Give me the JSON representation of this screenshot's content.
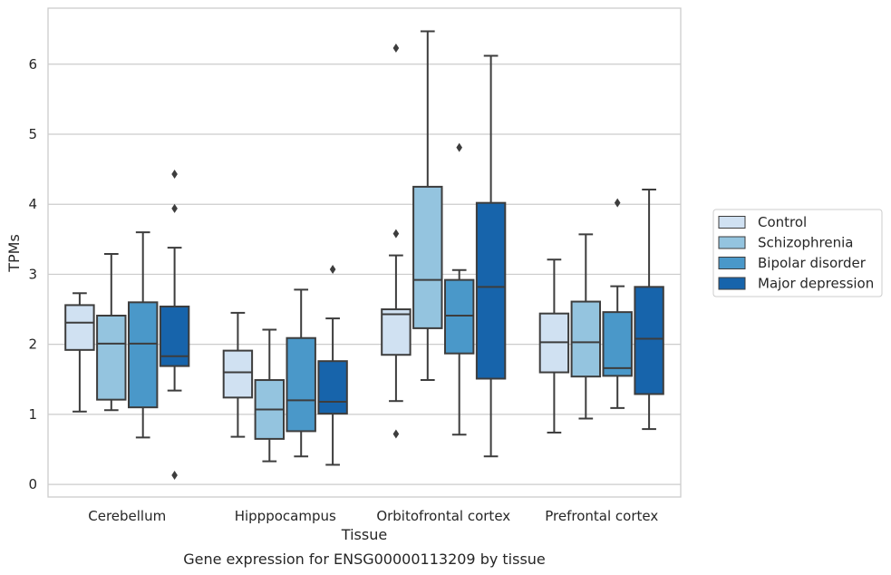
{
  "caption": "Gene expression for ENSG00000113209 by tissue",
  "chart_data": {
    "type": "boxplot",
    "xlabel": "Tissue",
    "ylabel": "TPMs",
    "ylim": [
      -0.18,
      6.8
    ],
    "yticks": [
      0,
      1,
      2,
      3,
      4,
      5,
      6
    ],
    "grid": "horizontal",
    "legend_position": "right",
    "categories": [
      "Cerebellum",
      "Hipppocampus",
      "Orbitofrontal cortex",
      "Prefrontal cortex"
    ],
    "series": [
      {
        "name": "Control",
        "color": "#d0e1f2",
        "boxes": [
          {
            "whislo": 1.04,
            "q1": 1.92,
            "med": 2.31,
            "q3": 2.56,
            "whishi": 2.73,
            "fliers": []
          },
          {
            "whislo": 0.68,
            "q1": 1.24,
            "med": 1.6,
            "q3": 1.91,
            "whishi": 2.45,
            "fliers": []
          },
          {
            "whislo": 1.19,
            "q1": 1.85,
            "med": 2.43,
            "q3": 2.5,
            "whishi": 3.27,
            "fliers": [
              6.23,
              3.58,
              0.72
            ]
          },
          {
            "whislo": 0.74,
            "q1": 1.6,
            "med": 2.03,
            "q3": 2.44,
            "whishi": 3.21,
            "fliers": []
          }
        ]
      },
      {
        "name": "Schizophrenia",
        "color": "#94c4df",
        "boxes": [
          {
            "whislo": 1.06,
            "q1": 1.21,
            "med": 2.01,
            "q3": 2.41,
            "whishi": 3.29,
            "fliers": []
          },
          {
            "whislo": 0.33,
            "q1": 0.65,
            "med": 1.07,
            "q3": 1.49,
            "whishi": 2.21,
            "fliers": []
          },
          {
            "whislo": 1.49,
            "q1": 2.23,
            "med": 2.92,
            "q3": 4.25,
            "whishi": 6.47,
            "fliers": []
          },
          {
            "whislo": 0.94,
            "q1": 1.54,
            "med": 2.03,
            "q3": 2.61,
            "whishi": 3.57,
            "fliers": []
          }
        ]
      },
      {
        "name": "Bipolar disorder",
        "color": "#4a98c9",
        "boxes": [
          {
            "whislo": 0.67,
            "q1": 1.1,
            "med": 2.01,
            "q3": 2.6,
            "whishi": 3.6,
            "fliers": []
          },
          {
            "whislo": 0.4,
            "q1": 0.76,
            "med": 1.2,
            "q3": 2.09,
            "whishi": 2.78,
            "fliers": []
          },
          {
            "whislo": 0.71,
            "q1": 1.87,
            "med": 2.41,
            "q3": 2.92,
            "whishi": 3.06,
            "fliers": [
              4.81
            ]
          },
          {
            "whislo": 1.09,
            "q1": 1.55,
            "med": 1.66,
            "q3": 2.46,
            "whishi": 2.83,
            "fliers": [
              4.02
            ]
          }
        ]
      },
      {
        "name": "Major depression",
        "color": "#1764ab",
        "boxes": [
          {
            "whislo": 1.34,
            "q1": 1.69,
            "med": 1.83,
            "q3": 2.54,
            "whishi": 3.38,
            "fliers": [
              4.43,
              3.94,
              0.13
            ]
          },
          {
            "whislo": 0.28,
            "q1": 1.01,
            "med": 1.18,
            "q3": 1.76,
            "whishi": 2.37,
            "fliers": [
              3.07
            ]
          },
          {
            "whislo": 0.4,
            "q1": 1.51,
            "med": 2.82,
            "q3": 4.02,
            "whishi": 6.12,
            "fliers": []
          },
          {
            "whislo": 0.79,
            "q1": 1.29,
            "med": 2.08,
            "q3": 2.82,
            "whishi": 4.21,
            "fliers": []
          }
        ]
      }
    ]
  }
}
